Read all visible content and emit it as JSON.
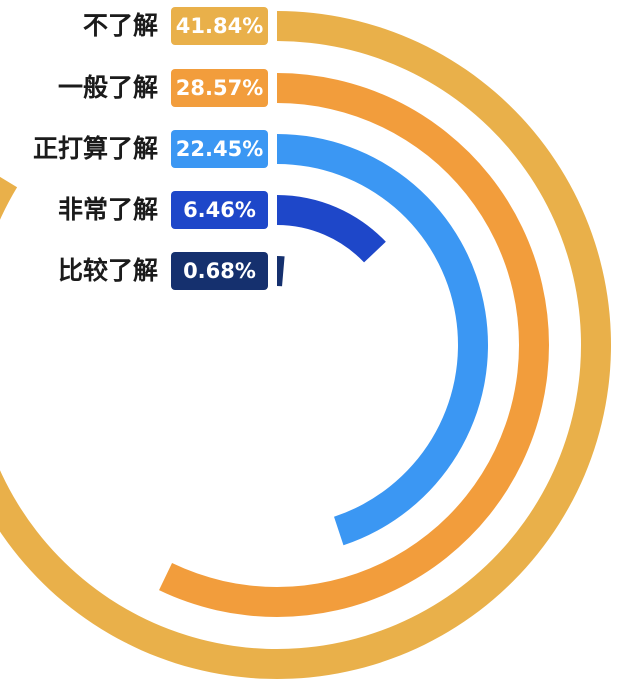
{
  "chart_data": {
    "type": "radial-bar",
    "title": "",
    "categories": [
      "不了解",
      "一般了解",
      "正打算了解",
      "非常了解",
      "比较了解"
    ],
    "values": [
      41.84,
      28.57,
      22.45,
      6.46,
      0.68
    ],
    "value_labels": [
      "41.84%",
      "28.57%",
      "22.45%",
      "6.46%",
      "0.68%"
    ],
    "unit": "%",
    "full_scale": 50,
    "colors": [
      "#E9B04A",
      "#F29D3C",
      "#3B97F3",
      "#1E47C9",
      "#15306E"
    ],
    "legend": "none",
    "grid": false
  }
}
